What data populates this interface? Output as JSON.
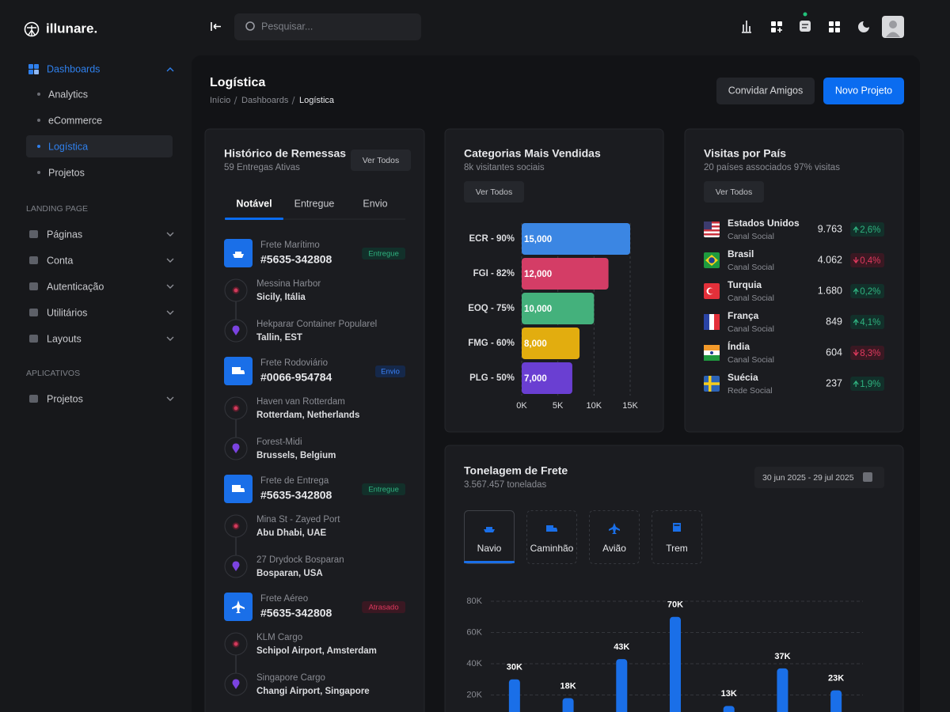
{
  "brand": "illunare.",
  "search_placeholder": "Pesquisar...",
  "sidebar": {
    "dashboards": {
      "label": "Dashboards",
      "items": [
        "Analytics",
        "eCommerce",
        "Logística",
        "Projetos"
      ],
      "active": 2
    },
    "sections": [
      {
        "title": "LANDING PAGE",
        "items": [
          "Páginas",
          "Conta",
          "Autenticação",
          "Utilitários",
          "Layouts"
        ]
      },
      {
        "title": "APLICATIVOS",
        "items": [
          "Projetos"
        ]
      }
    ]
  },
  "header": {
    "title": "Logística",
    "breadcrumb": [
      "Início",
      "Dashboards",
      "Logística"
    ],
    "buttons": [
      "Convidar Amigos",
      "Novo Projeto"
    ]
  },
  "shipments": {
    "title": "Histórico de Remessas",
    "subtitle": "59 Entregas Ativas",
    "button": "Ver Todos",
    "tabs": [
      "Notável",
      "Entregue",
      "Envio"
    ],
    "active_tab": 0,
    "items": [
      {
        "type": "Frete Marítimo",
        "id": "#5635-342808",
        "status": "Entregue",
        "stops": [
          {
            "name": "Messina Harbor",
            "place": "Sicily, Itália"
          },
          {
            "name": "Hekparar Container Popularel",
            "place": "Tallin, EST"
          }
        ]
      },
      {
        "type": "Frete Rodoviário",
        "id": "#0066-954784",
        "status": "Envio",
        "stops": [
          {
            "name": "Haven van Rotterdam",
            "place": "Rotterdam, Netherlands"
          },
          {
            "name": "Forest-Midi",
            "place": "Brussels, Belgium"
          }
        ]
      },
      {
        "type": "Frete de Entrega",
        "id": "#5635-342808",
        "status": "Entregue",
        "stops": [
          {
            "name": "Mina St - Zayed Port",
            "place": "Abu Dhabi, UAE"
          },
          {
            "name": "27 Drydock Bosparan",
            "place": "Bosparan, USA"
          }
        ]
      },
      {
        "type": "Frete Aéreo",
        "id": "#5635-342808",
        "status": "Atrasado",
        "stops": [
          {
            "name": "KLM Cargo",
            "place": "Schipol Airport, Amsterdam"
          },
          {
            "name": "Singapore Cargo",
            "place": "Changi Airport, Singapore"
          }
        ]
      }
    ]
  },
  "categories_card": {
    "button": "Ver Todos"
  },
  "countries": {
    "title": "Visitas por País",
    "subtitle": "20 países associados 97% visitas",
    "button": "Ver Todos",
    "rows": [
      {
        "name": "Estados Unidos",
        "channel": "Canal Social",
        "value": "9.763",
        "change": "2,6%",
        "direction": "up"
      },
      {
        "name": "Brasil",
        "channel": "Canal Social",
        "value": "4.062",
        "change": "0,4%",
        "direction": "down"
      },
      {
        "name": "Turquia",
        "channel": "Canal Social",
        "value": "1.680",
        "change": "0,2%",
        "direction": "up"
      },
      {
        "name": "França",
        "channel": "Canal Social",
        "value": "849",
        "change": "4,1%",
        "direction": "up"
      },
      {
        "name": "Índia",
        "channel": "Canal Social",
        "value": "604",
        "change": "8,3%",
        "direction": "down"
      },
      {
        "name": "Suécia",
        "channel": "Rede Social",
        "value": "237",
        "change": "1,9%",
        "direction": "up"
      }
    ]
  },
  "freight_card": {
    "date_range": "30 jun 2025 - 29 jul 2025",
    "tabs": [
      "Navio",
      "Caminhão",
      "Avião",
      "Trem"
    ],
    "active_tab": 0
  },
  "chart_data": [
    {
      "type": "bar",
      "orientation": "horizontal",
      "title": "Categorias Mais Vendidas",
      "subtitle": "8k visitantes sociais",
      "categories": [
        "ECR - 90%",
        "FGI - 82%",
        "EOQ - 75%",
        "FMG - 60%",
        "PLG - 50%"
      ],
      "values": [
        15000,
        12000,
        10000,
        8000,
        7000
      ],
      "value_labels": [
        "15,000",
        "12,000",
        "10,000",
        "8,000",
        "7,000"
      ],
      "colors": [
        "#3b86e3",
        "#d43d66",
        "#44b17c",
        "#e2ad0f",
        "#6a3fd2"
      ],
      "xlim": [
        0,
        15000
      ],
      "xticks": [
        {
          "value": 0,
          "label": "0K"
        },
        {
          "value": 5000,
          "label": "5K"
        },
        {
          "value": 10000,
          "label": "10K"
        },
        {
          "value": 15000,
          "label": "15K"
        }
      ],
      "grid": true
    },
    {
      "type": "bar",
      "title": "Tonelagem de Frete",
      "subtitle": "3.567.457 toneladas",
      "categories": [
        null,
        null,
        null,
        null,
        null,
        null,
        null
      ],
      "values": [
        30000,
        18000,
        43000,
        70000,
        13000,
        37000,
        23000
      ],
      "value_labels": [
        "30K",
        "18K",
        "43K",
        "70K",
        "13K",
        "37K",
        "23K"
      ],
      "color": "#1a6fe8",
      "ylim": [
        0,
        80000
      ],
      "yticks": [
        {
          "value": 20000,
          "label": "20K"
        },
        {
          "value": 40000,
          "label": "40K"
        },
        {
          "value": 60000,
          "label": "60K"
        },
        {
          "value": 80000,
          "label": "80K"
        }
      ],
      "grid": true
    }
  ]
}
